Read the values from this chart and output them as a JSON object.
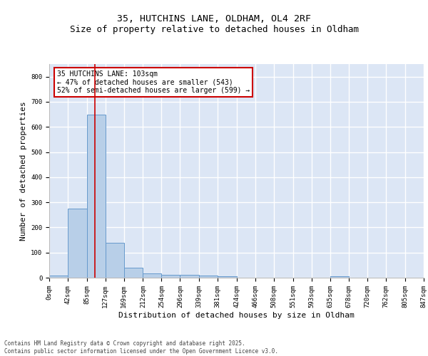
{
  "title": "35, HUTCHINS LANE, OLDHAM, OL4 2RF",
  "subtitle": "Size of property relative to detached houses in Oldham",
  "xlabel": "Distribution of detached houses by size in Oldham",
  "ylabel": "Number of detached properties",
  "bin_edges": [
    0,
    42,
    85,
    127,
    169,
    212,
    254,
    296,
    339,
    381,
    424,
    466,
    508,
    551,
    593,
    635,
    678,
    720,
    762,
    805,
    847
  ],
  "bar_heights": [
    8,
    275,
    650,
    140,
    40,
    18,
    12,
    10,
    8,
    5,
    0,
    0,
    0,
    0,
    0,
    5,
    0,
    0,
    0,
    0
  ],
  "bar_color": "#b8cfe8",
  "bar_edgecolor": "#6699cc",
  "background_color": "#dce6f5",
  "grid_color": "#ffffff",
  "property_size": 103,
  "vline_color": "#cc0000",
  "annotation_text": "35 HUTCHINS LANE: 103sqm\n← 47% of detached houses are smaller (543)\n52% of semi-detached houses are larger (599) →",
  "annotation_box_color": "#ffffff",
  "annotation_border_color": "#cc0000",
  "ylim": [
    0,
    850
  ],
  "yticks": [
    0,
    100,
    200,
    300,
    400,
    500,
    600,
    700,
    800
  ],
  "footer_text": "Contains HM Land Registry data © Crown copyright and database right 2025.\nContains public sector information licensed under the Open Government Licence v3.0.",
  "title_fontsize": 9.5,
  "tick_fontsize": 6.5,
  "label_fontsize": 8
}
